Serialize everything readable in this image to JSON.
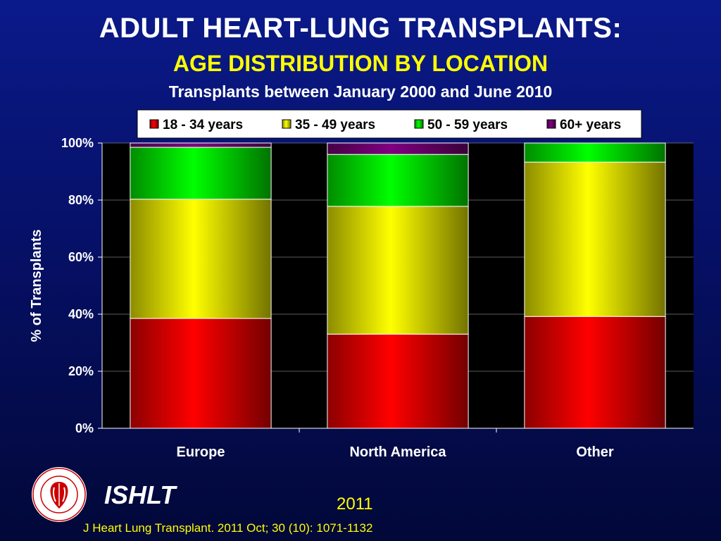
{
  "slide": {
    "title": "ADULT HEART-LUNG TRANSPLANTS:",
    "subtitle": "AGE DISTRIBUTION BY LOCATION",
    "subtitle2": "Transplants between January 2000 and June 2010",
    "org": "ISHLT",
    "year": "2011",
    "citation": "J Heart Lung Transplant. 2011 Oct; 30 (10): 1071-1132",
    "logo_icon": "ishlt-seal-icon",
    "logo_text": "INTERNATIONAL SOCIETY FOR HEART & LUNG TRANSPLANTATION"
  },
  "chart_data": {
    "type": "bar",
    "stacked": true,
    "percent_stacked": true,
    "categories": [
      "Europe",
      "North America",
      "Other"
    ],
    "series": [
      {
        "name": "18 - 34 years",
        "color": "#ff0000",
        "values": [
          38.5,
          33.0,
          39.2
        ]
      },
      {
        "name": "35 - 49 years",
        "color": "#ffff00",
        "values": [
          41.8,
          44.8,
          54.1
        ]
      },
      {
        "name": "50 - 59 years",
        "color": "#00ff00",
        "values": [
          18.2,
          18.2,
          6.7
        ]
      },
      {
        "name": "60+ years",
        "color": "#800080",
        "values": [
          1.5,
          4.0,
          0.0
        ]
      }
    ],
    "ylabel": "% of Transplants",
    "ylim": [
      0,
      100
    ],
    "yticks": [
      "0%",
      "20%",
      "40%",
      "60%",
      "80%",
      "100%"
    ],
    "grid": true,
    "legend_position": "top",
    "plot_background": "#000000"
  }
}
